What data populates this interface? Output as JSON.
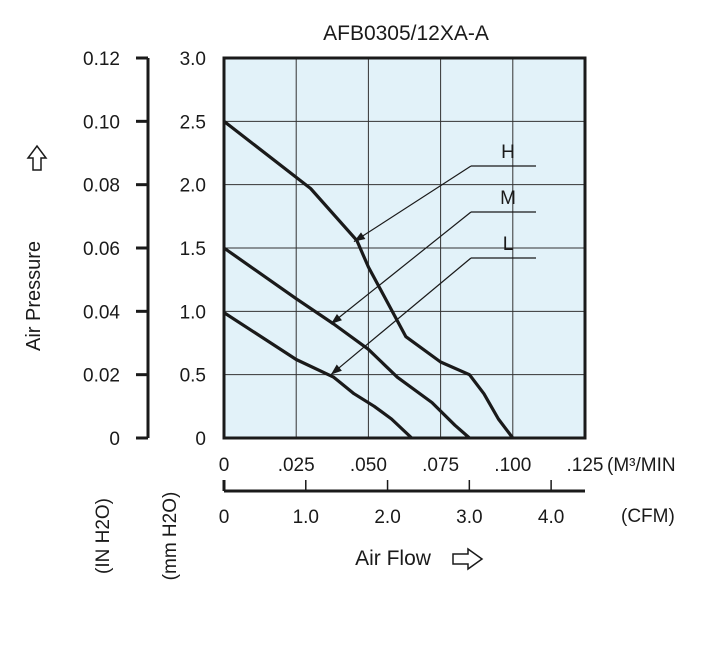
{
  "chart_data": {
    "type": "line",
    "title": "AFB0305/12XA-A",
    "background_color": "#e2f2f9",
    "line_color": "#1a1a1a",
    "x_axis_primary": {
      "unit_label": "(M³/MIN",
      "ticks": [
        {
          "value": 0,
          "label": "0"
        },
        {
          "value": 0.025,
          "label": ".025"
        },
        {
          "value": 0.05,
          "label": ".050"
        },
        {
          "value": 0.075,
          "label": ".075"
        },
        {
          "value": 0.1,
          "label": ".100"
        },
        {
          "value": 0.125,
          "label": ".125"
        }
      ],
      "range": [
        0,
        0.125
      ]
    },
    "x_axis_secondary": {
      "unit_label": "(CFM)",
      "ticks": [
        {
          "value": 0,
          "label": "0"
        },
        {
          "value": 1.0,
          "label": "1.0"
        },
        {
          "value": 2.0,
          "label": "2.0"
        },
        {
          "value": 3.0,
          "label": "3.0"
        },
        {
          "value": 4.0,
          "label": "4.0"
        }
      ]
    },
    "xlabel": "Air Flow",
    "y_axis_primary": {
      "unit_label": "(mm H2O)",
      "ticks": [
        {
          "value": 0,
          "label": "0"
        },
        {
          "value": 0.5,
          "label": "0.5"
        },
        {
          "value": 1.0,
          "label": "1.0"
        },
        {
          "value": 1.5,
          "label": "1.5"
        },
        {
          "value": 2.0,
          "label": "2.0"
        },
        {
          "value": 2.5,
          "label": "2.5"
        },
        {
          "value": 3.0,
          "label": "3.0"
        }
      ],
      "range": [
        0,
        3.0
      ]
    },
    "y_axis_secondary": {
      "unit_label": "(IN H2O)",
      "ticks": [
        {
          "value": 0,
          "label": "0"
        },
        {
          "value": 0.02,
          "label": "0.02"
        },
        {
          "value": 0.04,
          "label": "0.04"
        },
        {
          "value": 0.06,
          "label": "0.06"
        },
        {
          "value": 0.08,
          "label": "0.08"
        },
        {
          "value": 0.1,
          "label": "0.10"
        },
        {
          "value": 0.12,
          "label": "0.12"
        }
      ]
    },
    "ylabel": "Air Pressure",
    "grid": true,
    "series": [
      {
        "name": "H",
        "x": [
          0,
          0.03,
          0.046,
          0.05,
          0.063,
          0.075,
          0.085,
          0.09,
          0.095,
          0.1
        ],
        "y": [
          2.5,
          1.97,
          1.56,
          1.35,
          0.8,
          0.6,
          0.5,
          0.35,
          0.15,
          0
        ]
      },
      {
        "name": "M",
        "x": [
          0,
          0.025,
          0.038,
          0.05,
          0.06,
          0.072,
          0.08,
          0.085
        ],
        "y": [
          1.5,
          1.1,
          0.9,
          0.7,
          0.48,
          0.28,
          0.1,
          0
        ]
      },
      {
        "name": "L",
        "x": [
          0,
          0.025,
          0.038,
          0.045,
          0.052,
          0.058,
          0.065
        ],
        "y": [
          0.99,
          0.62,
          0.48,
          0.35,
          0.25,
          0.15,
          0
        ]
      }
    ],
    "annotations": [
      {
        "series": "H",
        "label": "H",
        "point": [
          0.045,
          1.55
        ]
      },
      {
        "series": "M",
        "label": "M",
        "point": [
          0.037,
          0.9
        ]
      },
      {
        "series": "L",
        "label": "L",
        "point": [
          0.037,
          0.5
        ]
      }
    ]
  }
}
